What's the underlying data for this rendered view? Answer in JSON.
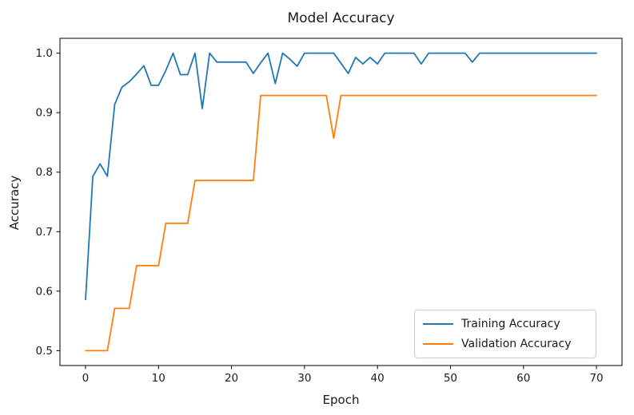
{
  "chart_data": {
    "type": "line",
    "title": "Model Accuracy",
    "xlabel": "Epoch",
    "ylabel": "Accuracy",
    "xlim": [
      -3.5,
      73.5
    ],
    "ylim": [
      0.475,
      1.025
    ],
    "x_ticks": [
      0,
      10,
      20,
      30,
      40,
      50,
      60,
      70
    ],
    "y_ticks": [
      0.5,
      0.6,
      0.7,
      0.8,
      0.9,
      1.0
    ],
    "grid": false,
    "legend_position": "lower right",
    "x": [
      0,
      1,
      2,
      3,
      4,
      5,
      6,
      7,
      8,
      9,
      10,
      11,
      12,
      13,
      14,
      15,
      16,
      17,
      18,
      19,
      20,
      21,
      22,
      23,
      24,
      25,
      26,
      27,
      28,
      29,
      30,
      31,
      32,
      33,
      34,
      35,
      36,
      37,
      38,
      39,
      40,
      41,
      42,
      43,
      44,
      45,
      46,
      47,
      48,
      49,
      50,
      51,
      52,
      53,
      54,
      55,
      56,
      57,
      58,
      59,
      60,
      61,
      62,
      63,
      64,
      65,
      66,
      67,
      68,
      69,
      70
    ],
    "series": [
      {
        "name": "Training Accuracy",
        "color": "#1f77b4",
        "values": [
          0.586,
          0.793,
          0.814,
          0.793,
          0.914,
          0.943,
          0.952,
          0.965,
          0.979,
          0.946,
          0.946,
          0.971,
          1.0,
          0.964,
          0.964,
          1.0,
          0.907,
          1.0,
          0.985,
          0.985,
          0.985,
          0.985,
          0.985,
          0.966,
          0.984,
          1.0,
          0.949,
          1.0,
          0.99,
          0.978,
          1.0,
          1.0,
          1.0,
          1.0,
          1.0,
          0.983,
          0.966,
          0.993,
          0.982,
          0.993,
          0.982,
          1.0,
          1.0,
          1.0,
          1.0,
          1.0,
          0.982,
          1.0,
          1.0,
          1.0,
          1.0,
          1.0,
          1.0,
          0.985,
          1.0,
          1.0,
          1.0,
          1.0,
          1.0,
          1.0,
          1.0,
          1.0,
          1.0,
          1.0,
          1.0,
          1.0,
          1.0,
          1.0,
          1.0,
          1.0,
          1.0
        ]
      },
      {
        "name": "Validation Accuracy",
        "color": "#ff7f0e",
        "values": [
          0.5,
          0.5,
          0.5,
          0.5,
          0.571,
          0.571,
          0.571,
          0.643,
          0.643,
          0.643,
          0.643,
          0.714,
          0.714,
          0.714,
          0.714,
          0.786,
          0.786,
          0.786,
          0.786,
          0.786,
          0.786,
          0.786,
          0.786,
          0.786,
          0.929,
          0.929,
          0.929,
          0.929,
          0.929,
          0.929,
          0.929,
          0.929,
          0.929,
          0.929,
          0.857,
          0.929,
          0.929,
          0.929,
          0.929,
          0.929,
          0.929,
          0.929,
          0.929,
          0.929,
          0.929,
          0.929,
          0.929,
          0.929,
          0.929,
          0.929,
          0.929,
          0.929,
          0.929,
          0.929,
          0.929,
          0.929,
          0.929,
          0.929,
          0.929,
          0.929,
          0.929,
          0.929,
          0.929,
          0.929,
          0.929,
          0.929,
          0.929,
          0.929,
          0.929,
          0.929,
          0.929
        ]
      }
    ]
  }
}
